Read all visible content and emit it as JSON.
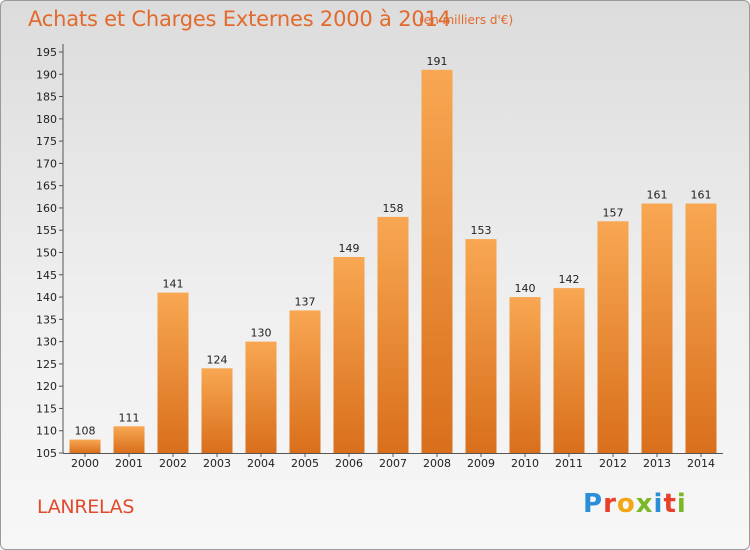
{
  "header": {
    "title": "Achats et Charges Externes 2000 à 2014",
    "subtitle": "(en milliers d'€)"
  },
  "footer": {
    "commune": "LANRELAS",
    "logo_text": "Proxiti"
  },
  "colors": {
    "bar_light": "#f8a752",
    "bar_dark": "#d96f1c",
    "title": "#e26a2c",
    "logo": [
      "#2a8fd6",
      "#e8402a",
      "#f2a614",
      "#7ab828",
      "#2a8fd6",
      "#e8402a",
      "#7ab828"
    ]
  },
  "chart_data": {
    "type": "bar",
    "categories": [
      "2000",
      "2001",
      "2002",
      "2003",
      "2004",
      "2005",
      "2006",
      "2007",
      "2008",
      "2009",
      "2010",
      "2011",
      "2012",
      "2013",
      "2014"
    ],
    "values": [
      108,
      111,
      141,
      124,
      130,
      137,
      149,
      158,
      191,
      153,
      140,
      142,
      157,
      161,
      161
    ],
    "ylim": [
      105,
      195
    ],
    "yticks": [
      105,
      110,
      115,
      120,
      125,
      130,
      135,
      140,
      145,
      150,
      155,
      160,
      165,
      170,
      175,
      180,
      185,
      190,
      195
    ],
    "grid": false,
    "legend": "none"
  }
}
